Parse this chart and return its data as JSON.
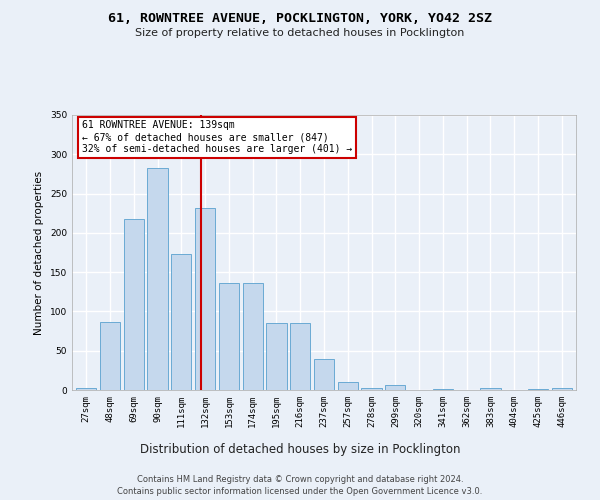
{
  "title": "61, ROWNTREE AVENUE, POCKLINGTON, YORK, YO42 2SZ",
  "subtitle": "Size of property relative to detached houses in Pocklington",
  "xlabel": "Distribution of detached houses by size in Pocklington",
  "ylabel": "Number of detached properties",
  "bar_color": "#c5d8ed",
  "bar_edge_color": "#6aaad4",
  "background_color": "#eaf0f8",
  "grid_color": "#ffffff",
  "fig_color": "#eaf0f8",
  "categories": [
    "27sqm",
    "48sqm",
    "69sqm",
    "90sqm",
    "111sqm",
    "132sqm",
    "153sqm",
    "174sqm",
    "195sqm",
    "216sqm",
    "237sqm",
    "257sqm",
    "278sqm",
    "299sqm",
    "320sqm",
    "341sqm",
    "362sqm",
    "383sqm",
    "404sqm",
    "425sqm",
    "446sqm"
  ],
  "values": [
    3,
    86,
    218,
    283,
    173,
    232,
    136,
    136,
    85,
    85,
    39,
    10,
    3,
    6,
    0,
    1,
    0,
    3,
    0,
    1,
    3
  ],
  "ylim": [
    0,
    350
  ],
  "yticks": [
    0,
    50,
    100,
    150,
    200,
    250,
    300,
    350
  ],
  "annotation_text": "61 ROWNTREE AVENUE: 139sqm\n← 67% of detached houses are smaller (847)\n32% of semi-detached houses are larger (401) →",
  "annotation_box_color": "#ffffff",
  "annotation_box_edge": "#cc0000",
  "vline_color": "#cc0000",
  "footer_line1": "Contains HM Land Registry data © Crown copyright and database right 2024.",
  "footer_line2": "Contains public sector information licensed under the Open Government Licence v3.0."
}
